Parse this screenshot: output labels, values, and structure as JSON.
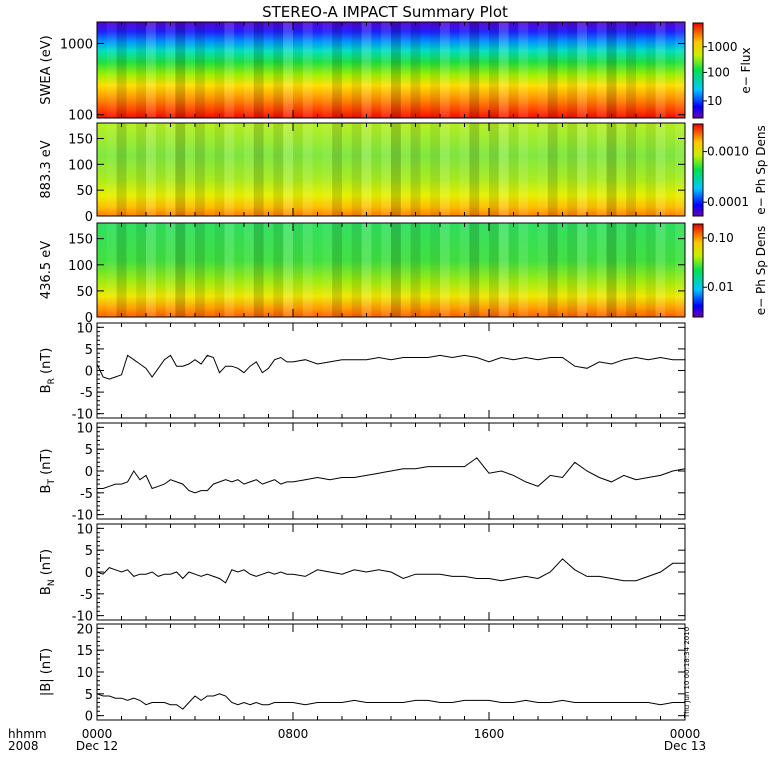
{
  "title": "STEREO-A IMPACT Summary Plot",
  "timestamp": "Thu Jun 10 00:18:34 2010",
  "bottom_labels": {
    "row1_left": "hhmm",
    "row2_left": "2008",
    "ticks": [
      "0000",
      "0800",
      "1600",
      "0000"
    ],
    "dates": [
      "Dec 12",
      "",
      "",
      "Dec 13"
    ]
  },
  "colors": {
    "line": "#000000",
    "background": "#ffffff"
  },
  "chart_data": [
    {
      "type": "heatmap",
      "id": "swea",
      "ylabel": "SWEA (eV)",
      "yscale": "log",
      "ylim": [
        90,
        2000
      ],
      "yticks": [
        100,
        1000
      ],
      "ytick_labels": [
        "100",
        "1000"
      ],
      "colorbar_label": "e− Flux",
      "colorbar_scale": "log",
      "colorbar_ticks": [
        "1000",
        "100",
        "10"
      ],
      "colorbar_tick_fracs": [
        0.75,
        0.48,
        0.18
      ]
    },
    {
      "type": "heatmap",
      "id": "pad883",
      "ylabel": "883.3 eV",
      "ylim": [
        0,
        180
      ],
      "yticks": [
        0,
        50,
        100,
        150
      ],
      "ytick_labels": [
        "0",
        "50",
        "100",
        "150"
      ],
      "colorbar_label": "e− Ph Sp Dens",
      "colorbar_scale": "log",
      "colorbar_ticks": [
        "0.0010",
        "0.0001"
      ],
      "colorbar_tick_fracs": [
        0.7,
        0.15
      ]
    },
    {
      "type": "heatmap",
      "id": "pad436",
      "ylabel": "436.5 eV",
      "ylim": [
        0,
        180
      ],
      "yticks": [
        0,
        50,
        100,
        150
      ],
      "ytick_labels": [
        "0",
        "50",
        "100",
        "150"
      ],
      "colorbar_label": "e− Ph Sp Dens",
      "colorbar_scale": "log",
      "colorbar_ticks": [
        "0.10",
        "0.01"
      ],
      "colorbar_tick_fracs": [
        0.85,
        0.32
      ]
    },
    {
      "type": "line",
      "id": "br",
      "ylabel": "B",
      "ylabel_sub": "R",
      "ylabel_unit": "(nT)",
      "ylim": [
        -11,
        11
      ],
      "yticks": [
        -10,
        -5,
        0,
        5,
        10
      ],
      "xlim": [
        0,
        24
      ],
      "x": [
        0,
        0.25,
        0.5,
        0.75,
        1,
        1.25,
        1.5,
        1.75,
        2,
        2.25,
        2.5,
        2.75,
        3,
        3.25,
        3.5,
        3.75,
        4,
        4.25,
        4.5,
        4.75,
        5,
        5.25,
        5.5,
        5.75,
        6,
        6.25,
        6.5,
        6.75,
        7,
        7.25,
        7.5,
        7.75,
        8,
        8.5,
        9,
        9.5,
        10,
        10.5,
        11,
        11.5,
        12,
        12.5,
        13,
        13.5,
        14,
        14.5,
        15,
        15.5,
        16,
        16.5,
        17,
        17.5,
        18,
        18.5,
        19,
        19.5,
        20,
        20.5,
        21,
        21.5,
        22,
        22.5,
        23,
        23.5,
        24
      ],
      "values": [
        1.5,
        -1.5,
        -2,
        -1.5,
        -1,
        3.5,
        2.5,
        1.5,
        0.5,
        -1.5,
        0.5,
        2.5,
        3.5,
        1,
        1,
        1.5,
        2.5,
        1.5,
        3.5,
        3,
        -0.5,
        1,
        1,
        0.5,
        -0.5,
        1,
        2,
        -0.5,
        0.5,
        2.5,
        3,
        2,
        2,
        2.5,
        1.5,
        2,
        2.5,
        2.5,
        2.5,
        3,
        2.5,
        3,
        3,
        3,
        3.5,
        3,
        3.5,
        3,
        2,
        3,
        2.5,
        3,
        2.5,
        3,
        3,
        1,
        0.5,
        2,
        1.5,
        2.5,
        3,
        2.5,
        3,
        2.5,
        2.5
      ]
    },
    {
      "type": "line",
      "id": "bt",
      "ylabel": "B",
      "ylabel_sub": "T",
      "ylabel_unit": "(nT)",
      "ylim": [
        -11,
        11
      ],
      "yticks": [
        -10,
        -5,
        0,
        5,
        10
      ],
      "xlim": [
        0,
        24
      ],
      "x": [
        0,
        0.25,
        0.5,
        0.75,
        1,
        1.25,
        1.5,
        1.75,
        2,
        2.25,
        2.5,
        2.75,
        3,
        3.25,
        3.5,
        3.75,
        4,
        4.25,
        4.5,
        4.75,
        5,
        5.25,
        5.5,
        5.75,
        6,
        6.25,
        6.5,
        6.75,
        7,
        7.25,
        7.5,
        7.75,
        8,
        8.5,
        9,
        9.5,
        10,
        10.5,
        11,
        11.5,
        12,
        12.5,
        13,
        13.5,
        14,
        14.5,
        15,
        15.5,
        16,
        16.5,
        17,
        17.5,
        18,
        18.5,
        19,
        19.5,
        20,
        20.5,
        21,
        21.5,
        22,
        22.5,
        23,
        23.5,
        24
      ],
      "values": [
        -4,
        -4,
        -3.5,
        -3,
        -3,
        -2.5,
        0,
        -2,
        -1,
        -4,
        -3.5,
        -3,
        -2,
        -2.5,
        -3,
        -4.5,
        -5,
        -4.5,
        -4.5,
        -3,
        -2.5,
        -2,
        -2.5,
        -2,
        -3,
        -2.5,
        -2,
        -3,
        -2.5,
        -2,
        -3,
        -2.5,
        -2.5,
        -2,
        -1.5,
        -2,
        -1.5,
        -1.5,
        -1,
        -0.5,
        0,
        0.5,
        0.5,
        1,
        1,
        1,
        1,
        3,
        -0.5,
        0,
        -1,
        -2.5,
        -3.5,
        -1,
        -1.5,
        2,
        0,
        -1.5,
        -2.5,
        -1,
        -2,
        -1.5,
        -1,
        0,
        0.5
      ]
    },
    {
      "type": "line",
      "id": "bn",
      "ylabel": "B",
      "ylabel_sub": "N",
      "ylabel_unit": "(nT)",
      "ylim": [
        -11,
        11
      ],
      "yticks": [
        -10,
        -5,
        0,
        5,
        10
      ],
      "xlim": [
        0,
        24
      ],
      "x": [
        0,
        0.25,
        0.5,
        0.75,
        1,
        1.25,
        1.5,
        1.75,
        2,
        2.25,
        2.5,
        2.75,
        3,
        3.25,
        3.5,
        3.75,
        4,
        4.25,
        4.5,
        4.75,
        5,
        5.25,
        5.5,
        5.75,
        6,
        6.25,
        6.5,
        6.75,
        7,
        7.25,
        7.5,
        7.75,
        8,
        8.5,
        9,
        9.5,
        10,
        10.5,
        11,
        11.5,
        12,
        12.5,
        13,
        13.5,
        14,
        14.5,
        15,
        15.5,
        16,
        16.5,
        17,
        17.5,
        18,
        18.5,
        19,
        19.5,
        20,
        20.5,
        21,
        21.5,
        22,
        22.5,
        23,
        23.5,
        24
      ],
      "values": [
        0,
        -0.5,
        1,
        0.5,
        0,
        0.5,
        -1,
        -0.5,
        -0.5,
        0,
        -1,
        -0.5,
        -0.5,
        0,
        -1.5,
        0,
        -0.5,
        -1,
        -0.5,
        -1,
        -1.5,
        -2.5,
        0.5,
        0,
        0.5,
        -0.5,
        -1,
        -0.5,
        0,
        -0.5,
        0,
        -0.5,
        -0.5,
        -1,
        0.5,
        0,
        -0.5,
        0.5,
        0,
        0.5,
        0,
        -1.5,
        -0.5,
        -0.5,
        -0.5,
        -1,
        -1,
        -1.5,
        -1.5,
        -2,
        -1.5,
        -1,
        -1.5,
        0,
        3,
        0.5,
        -1,
        -1,
        -1.5,
        -2,
        -2,
        -1,
        0,
        2,
        2
      ]
    },
    {
      "type": "line",
      "id": "bmag",
      "ylabel": "|B| (nT)",
      "ylim": [
        -1,
        21
      ],
      "yticks": [
        0,
        5,
        10,
        15,
        20
      ],
      "xlim": [
        0,
        24
      ],
      "x": [
        0,
        0.25,
        0.5,
        0.75,
        1,
        1.25,
        1.5,
        1.75,
        2,
        2.25,
        2.5,
        2.75,
        3,
        3.25,
        3.5,
        3.75,
        4,
        4.25,
        4.5,
        4.75,
        5,
        5.25,
        5.5,
        5.75,
        6,
        6.25,
        6.5,
        6.75,
        7,
        7.25,
        7.5,
        7.75,
        8,
        8.5,
        9,
        9.5,
        10,
        10.5,
        11,
        11.5,
        12,
        12.5,
        13,
        13.5,
        14,
        14.5,
        15,
        15.5,
        16,
        16.5,
        17,
        17.5,
        18,
        18.5,
        19,
        19.5,
        20,
        20.5,
        21,
        21.5,
        22,
        22.5,
        23,
        23.5,
        24
      ],
      "values": [
        5,
        4.5,
        4.5,
        4,
        4,
        3.5,
        4,
        3.5,
        2.5,
        3,
        3,
        3,
        2.5,
        2.5,
        1.5,
        3,
        4.5,
        3.5,
        4.5,
        4.5,
        5,
        4.5,
        3,
        2.5,
        3,
        2.5,
        3,
        2.5,
        2.5,
        3,
        3,
        3,
        3,
        2.5,
        3,
        3,
        3,
        3.5,
        3,
        3,
        3,
        3,
        3.5,
        3.5,
        3,
        3,
        3.5,
        3.5,
        3.5,
        3,
        3,
        3.5,
        3,
        3,
        3.5,
        3,
        3,
        3,
        3,
        3,
        3,
        3,
        2.5,
        3,
        3
      ]
    }
  ]
}
